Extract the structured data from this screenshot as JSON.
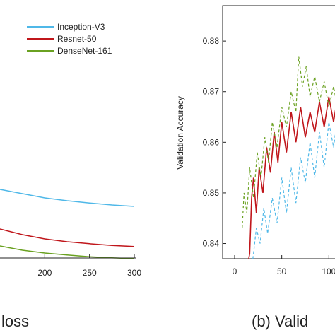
{
  "captions": {
    "left": "loss",
    "right": "(b) Valid"
  },
  "chart_data": [
    {
      "type": "line",
      "panel": "left",
      "xlabel": "",
      "ylabel": "",
      "xlim": [
        150,
        300
      ],
      "x_ticks": [
        200,
        250,
        300
      ],
      "legend_position": "top-right",
      "series": [
        {
          "name": "Inception-V3",
          "color": "#4fb8e8",
          "style": "solid",
          "x": [
            150,
            175,
            200,
            225,
            250,
            275,
            300
          ],
          "values": [
            0.58,
            0.565,
            0.55,
            0.54,
            0.532,
            0.525,
            0.52
          ]
        },
        {
          "name": "Resnet-50",
          "color": "#c0161b",
          "style": "solid",
          "x": [
            150,
            175,
            200,
            225,
            250,
            275,
            300
          ],
          "values": [
            0.44,
            0.42,
            0.405,
            0.395,
            0.388,
            0.382,
            0.378
          ]
        },
        {
          "name": "DenseNet-161",
          "color": "#6aa121",
          "style": "solid",
          "x": [
            150,
            175,
            200,
            225,
            250,
            275,
            300
          ],
          "values": [
            0.38,
            0.365,
            0.355,
            0.348,
            0.342,
            0.338,
            0.335
          ]
        }
      ]
    },
    {
      "type": "line",
      "panel": "right",
      "xlabel": "",
      "ylabel": "Validation Accuracy",
      "xlim": [
        0,
        120
      ],
      "ylim": [
        0.837,
        0.887
      ],
      "x_ticks": [
        0,
        50,
        100
      ],
      "x_tick_labels": [
        "0",
        "50",
        "100"
      ],
      "y_ticks": [
        0.84,
        0.85,
        0.86,
        0.87,
        0.88
      ],
      "series": [
        {
          "name": "Inception-V3",
          "color": "#4fb8e8",
          "style": "dashed",
          "x": [
            18,
            20,
            23,
            27,
            31,
            35,
            40,
            45,
            50,
            55,
            60,
            65,
            70,
            75,
            80,
            85,
            90,
            95,
            100,
            105,
            110,
            115,
            120
          ],
          "values": [
            0.835,
            0.838,
            0.843,
            0.84,
            0.847,
            0.842,
            0.849,
            0.844,
            0.853,
            0.846,
            0.855,
            0.848,
            0.857,
            0.852,
            0.86,
            0.853,
            0.862,
            0.855,
            0.864,
            0.859,
            0.866,
            0.861,
            0.867
          ]
        },
        {
          "name": "Resnet-50",
          "color": "#c0161b",
          "style": "solid",
          "x": [
            13,
            16,
            18,
            20,
            23,
            26,
            30,
            34,
            38,
            42,
            46,
            50,
            55,
            60,
            65,
            70,
            75,
            80,
            85,
            90,
            95,
            100,
            105,
            110,
            115,
            120
          ],
          "values": [
            0.835,
            0.838,
            0.849,
            0.853,
            0.846,
            0.855,
            0.85,
            0.859,
            0.854,
            0.862,
            0.856,
            0.864,
            0.858,
            0.866,
            0.86,
            0.867,
            0.861,
            0.866,
            0.862,
            0.868,
            0.863,
            0.869,
            0.864,
            0.87,
            0.865,
            0.871
          ]
        },
        {
          "name": "DenseNet-161",
          "color": "#6aa121",
          "style": "dashed",
          "x": [
            8,
            10,
            13,
            16,
            20,
            24,
            28,
            32,
            36,
            40,
            45,
            50,
            55,
            60,
            65,
            68,
            72,
            76,
            80,
            85,
            90,
            95,
            100,
            105,
            110,
            115,
            120
          ],
          "values": [
            0.843,
            0.85,
            0.846,
            0.855,
            0.849,
            0.858,
            0.853,
            0.861,
            0.856,
            0.864,
            0.859,
            0.867,
            0.863,
            0.87,
            0.866,
            0.877,
            0.871,
            0.875,
            0.869,
            0.873,
            0.868,
            0.872,
            0.867,
            0.871,
            0.866,
            0.871,
            0.868
          ]
        }
      ]
    }
  ]
}
